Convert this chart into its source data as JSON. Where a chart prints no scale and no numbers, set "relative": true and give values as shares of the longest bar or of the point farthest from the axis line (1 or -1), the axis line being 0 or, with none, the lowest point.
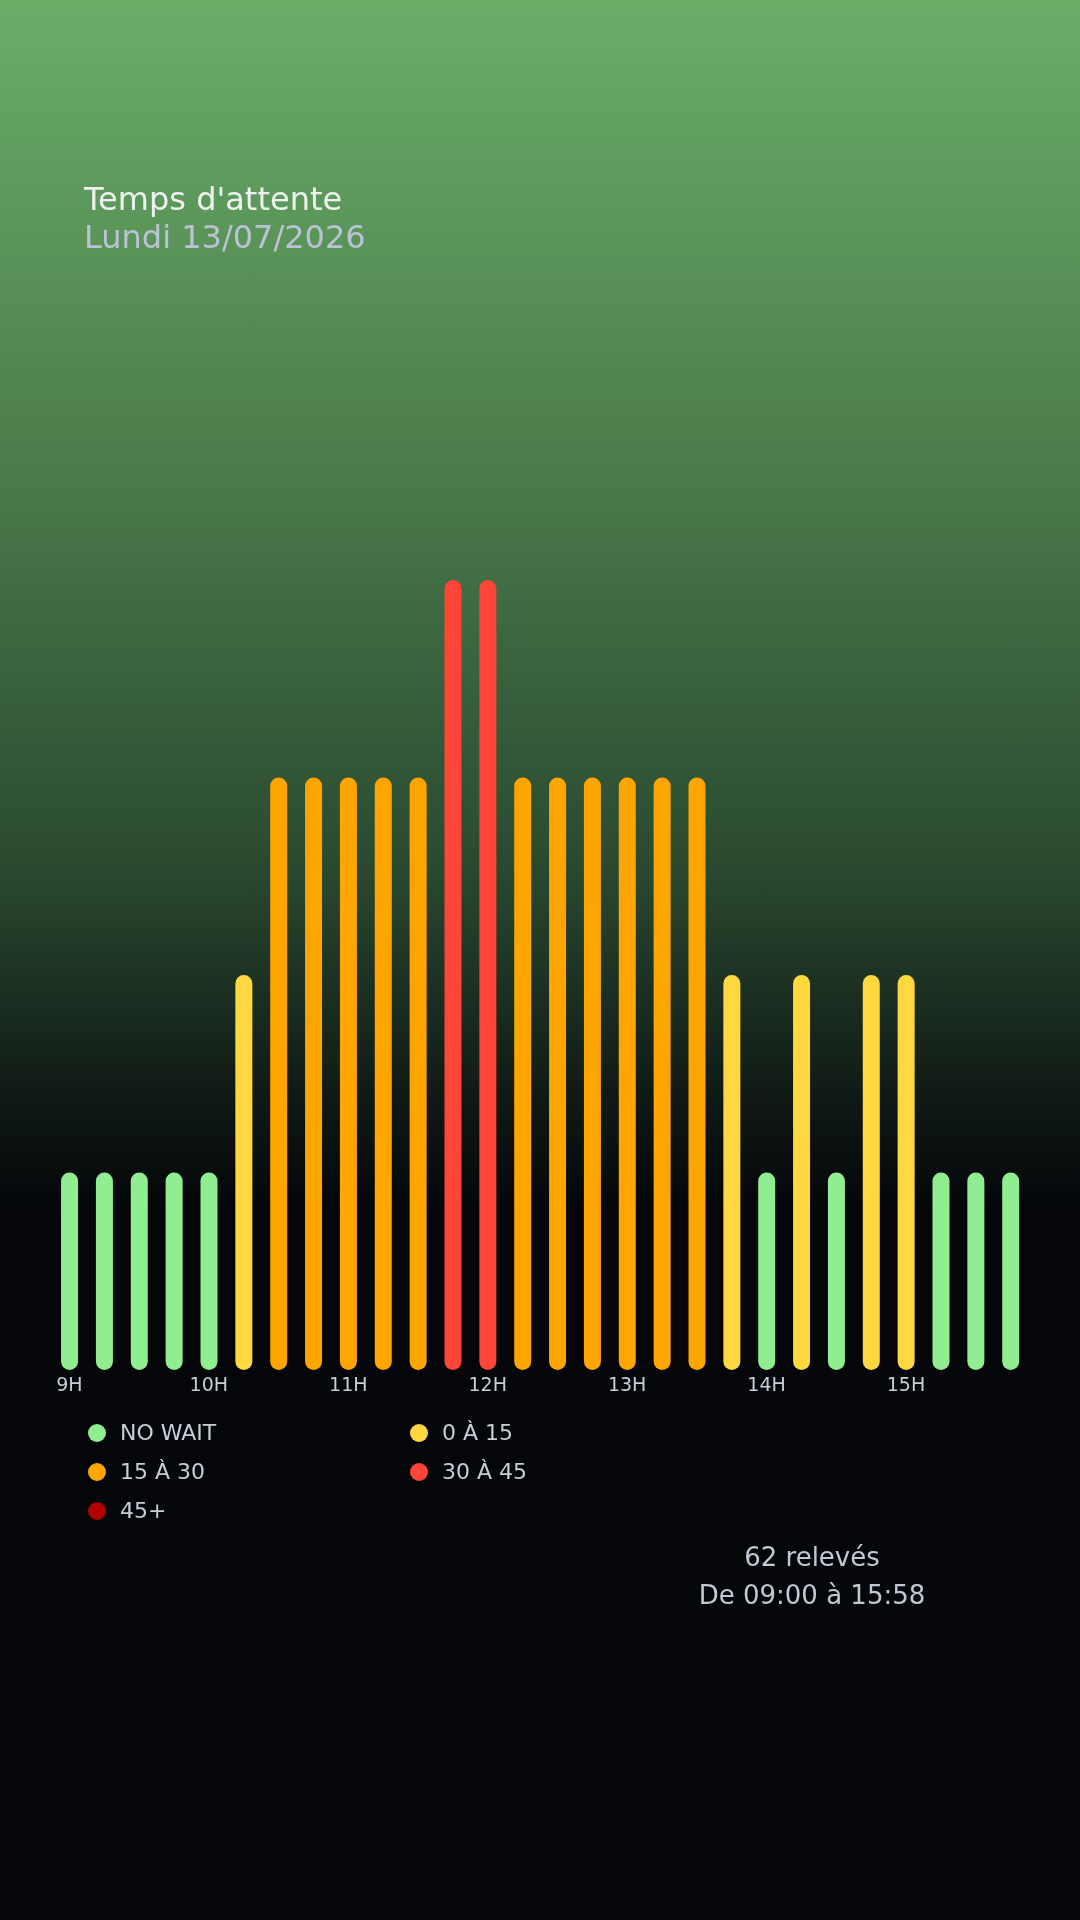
{
  "chart_data": {
    "type": "bar",
    "title": "Temps d'attente",
    "subtitle": "Lundi 13/07/2026",
    "relative": true,
    "stacked": true,
    "legend": "bottom",
    "categories": [
      "9H",
      null,
      null,
      null,
      "10H",
      null,
      null,
      null,
      "11H",
      null,
      null,
      null,
      "12H",
      null,
      null,
      null,
      "13H",
      null,
      null,
      null,
      "14H",
      null,
      null,
      null,
      "15H",
      null,
      null,
      null
    ],
    "series": [
      {
        "name": "NO WAIT",
        "color": "#90ee90",
        "values": [
          0.25,
          0.25,
          0.25,
          0.25,
          0.25,
          null,
          null,
          null,
          null,
          null,
          null,
          null,
          null,
          null,
          null,
          null,
          null,
          null,
          null,
          null,
          0.25,
          null,
          0.25,
          null,
          null,
          0.25,
          0.25,
          0.25
        ]
      },
      {
        "name": "0 À 15",
        "color": "#ffd740",
        "values": [
          null,
          null,
          null,
          null,
          null,
          0.5,
          null,
          null,
          null,
          null,
          null,
          null,
          null,
          null,
          null,
          null,
          null,
          null,
          null,
          0.5,
          null,
          0.5,
          null,
          0.5,
          0.5,
          null,
          null,
          null
        ]
      },
      {
        "name": "15 À 30",
        "color": "#ffa500",
        "values": [
          null,
          null,
          null,
          null,
          null,
          null,
          0.75,
          0.75,
          0.75,
          0.75,
          0.75,
          null,
          null,
          0.75,
          0.75,
          0.75,
          0.75,
          0.75,
          0.75,
          null,
          null,
          null,
          null,
          null,
          null,
          null,
          null,
          null
        ]
      },
      {
        "name": "30 À 45",
        "color": "#ff4538",
        "values": [
          null,
          null,
          null,
          null,
          null,
          null,
          null,
          null,
          null,
          null,
          null,
          1,
          1,
          null,
          null,
          null,
          null,
          null,
          null,
          null,
          null,
          null,
          null,
          null,
          null,
          null,
          null,
          null
        ]
      },
      {
        "name": "45+",
        "color": "#b00000",
        "values": [
          null,
          null,
          null,
          null,
          null,
          null,
          null,
          null,
          null,
          null,
          null,
          null,
          null,
          null,
          null,
          null,
          null,
          null,
          null,
          null,
          null,
          null,
          null,
          null,
          null,
          null,
          null,
          null
        ]
      }
    ],
    "annotations": [
      "62 relevés",
      "De 09:00 à 15:58"
    ]
  }
}
